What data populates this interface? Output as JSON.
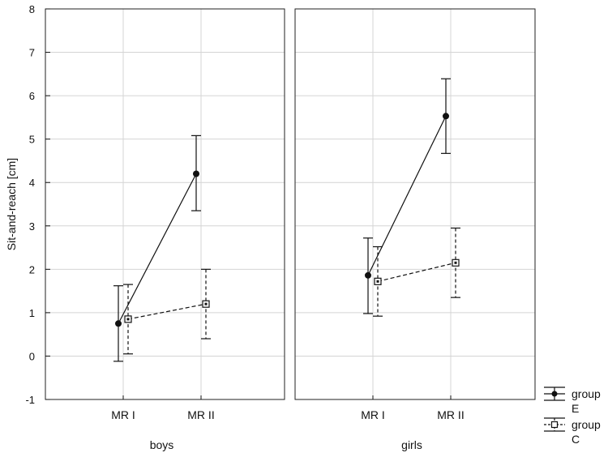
{
  "chart_data": {
    "type": "line",
    "ylabel": "Sit-and-reach [cm]",
    "ylim": [
      -1,
      8
    ],
    "yticks": [
      -1,
      0,
      1,
      2,
      3,
      4,
      5,
      6,
      7,
      8
    ],
    "grid": true,
    "categories": [
      "MR I",
      "MR II"
    ],
    "legend_position": "right",
    "legend": [
      {
        "label": "group",
        "sublabel": "E"
      },
      {
        "label": "group",
        "sublabel": "C"
      }
    ],
    "panels": [
      {
        "name": "boys",
        "series": [
          {
            "legend": 0,
            "marker": "circle",
            "dash": false,
            "color": "#111111",
            "values": [
              0.75,
              4.2
            ],
            "lower": [
              -0.12,
              3.35
            ],
            "upper": [
              1.62,
              5.08
            ]
          },
          {
            "legend": 1,
            "marker": "square",
            "dash": true,
            "color": "#111111",
            "values": [
              0.85,
              1.2
            ],
            "lower": [
              0.05,
              0.4
            ],
            "upper": [
              1.65,
              2.0
            ]
          }
        ]
      },
      {
        "name": "girls",
        "series": [
          {
            "legend": 0,
            "marker": "circle",
            "dash": false,
            "color": "#111111",
            "values": [
              1.86,
              5.53
            ],
            "lower": [
              0.98,
              4.67
            ],
            "upper": [
              2.72,
              6.39
            ]
          },
          {
            "legend": 1,
            "marker": "square",
            "dash": true,
            "color": "#111111",
            "values": [
              1.72,
              2.15
            ],
            "lower": [
              0.92,
              1.35
            ],
            "upper": [
              2.52,
              2.95
            ]
          }
        ]
      }
    ]
  }
}
